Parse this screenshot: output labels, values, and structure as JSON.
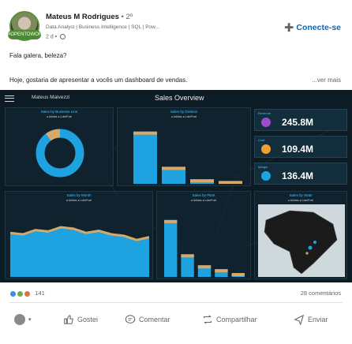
{
  "post": {
    "author": "Mateus M Rodrigues",
    "degree": "• 2º",
    "headline": "Data Analyst | Business Intelligence | SQL | Pow...",
    "time": "2 d •",
    "connect_label": "Conecte-se",
    "line1": "Fala galera, beleza?",
    "line2": "Hoje, gostaria de apresentar a vocês um dashboard de vendas.",
    "see_more": "...ver mais"
  },
  "dashboard": {
    "company": "Mateus Malvezzi",
    "title": "Sales Overview",
    "panels": {
      "business_line": "Sales by Business Line",
      "division": "Sales by Division",
      "month": "Sales by Month",
      "plant": "Sales by Plant",
      "state": "Sales by State"
    },
    "legend": "● Adidas ● LubriFuel",
    "kpis": [
      {
        "label": "Revenue",
        "value": "245.8M",
        "color": "#9c4dcc"
      },
      {
        "label": "Cost",
        "value": "109.4M",
        "color": "#f0a030"
      },
      {
        "label": "Margin",
        "value": "136.4M",
        "color": "#4fc3f7"
      }
    ],
    "colors": {
      "primary": "#1fa3e0",
      "secondary": "#d7a868",
      "bg": "#0d1b24"
    },
    "donut_fraction": 0.9,
    "division_values": [
      0.92,
      0.3,
      0.08,
      0.05
    ],
    "plant_values": [
      0.88,
      0.35,
      0.18,
      0.12,
      0.06
    ],
    "month_values": [
      0.62,
      0.6,
      0.66,
      0.64,
      0.7,
      0.68,
      0.62,
      0.65,
      0.6,
      0.58,
      0.52,
      0.56
    ]
  },
  "reactions": {
    "count": "141",
    "comments": "28 comentários"
  },
  "actions": {
    "like": "Gostei",
    "comment": "Comentar",
    "share": "Compartilhar",
    "send": "Enviar"
  }
}
